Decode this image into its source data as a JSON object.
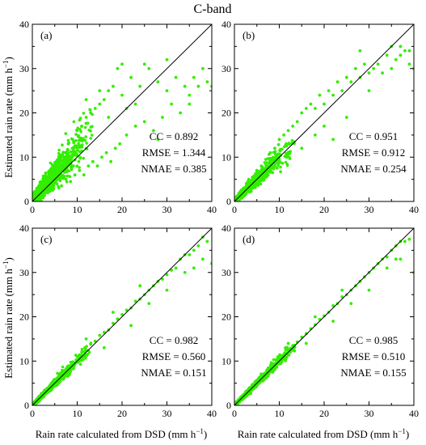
{
  "figure": {
    "title": "C-band",
    "xlabel": "Rain rate calculated  from DSD (mm h",
    "ylabel": "Estimated rain rate (mm h",
    "unit_exponent": "−1",
    "xticks": [
      "0",
      "10",
      "20",
      "30",
      "40"
    ],
    "yticks": [
      "0",
      "10",
      "20",
      "30",
      "40"
    ],
    "point_color": "#33ee00",
    "line_color": "#000000"
  },
  "chart_data": [
    {
      "type": "scatter",
      "panel": "(a)",
      "xlim": [
        0,
        40
      ],
      "ylim": [
        0,
        40
      ],
      "reference_line": "1:1",
      "stats": {
        "cc": "CC = 0.892",
        "rmse": "RMSE = 1.344",
        "nmae": "NMAE = 0.385"
      },
      "spread": 0.5,
      "points": [
        [
          0.5,
          0.8
        ],
        [
          1,
          2.2
        ],
        [
          1.5,
          0.6
        ],
        [
          2,
          3.5
        ],
        [
          2.5,
          1.2
        ],
        [
          3,
          5.5
        ],
        [
          3.5,
          2
        ],
        [
          4,
          6.5
        ],
        [
          4.5,
          3
        ],
        [
          5,
          8
        ],
        [
          5.5,
          4
        ],
        [
          6,
          9.5
        ],
        [
          6.5,
          3.5
        ],
        [
          7,
          11
        ],
        [
          7.5,
          5
        ],
        [
          8,
          13
        ],
        [
          8.5,
          4.5
        ],
        [
          9,
          14
        ],
        [
          9.5,
          6
        ],
        [
          10,
          16
        ],
        [
          10.5,
          7
        ],
        [
          11,
          17
        ],
        [
          11.5,
          6
        ],
        [
          12,
          19
        ],
        [
          12.5,
          8
        ],
        [
          13,
          20
        ],
        [
          13.5,
          9
        ],
        [
          14,
          21
        ],
        [
          14.5,
          8
        ],
        [
          15,
          22
        ],
        [
          15.5,
          10
        ],
        [
          16,
          23
        ],
        [
          16.5,
          11
        ],
        [
          17,
          25
        ],
        [
          17.5,
          9
        ],
        [
          18,
          26
        ],
        [
          18.5,
          12
        ],
        [
          19,
          30
        ],
        [
          19.5,
          13
        ],
        [
          20,
          24
        ],
        [
          21,
          15
        ],
        [
          22,
          28
        ],
        [
          23,
          17
        ],
        [
          24,
          26
        ],
        [
          25,
          18
        ],
        [
          26,
          30
        ],
        [
          27,
          16
        ],
        [
          28,
          27
        ],
        [
          29,
          19
        ],
        [
          30,
          25
        ],
        [
          31,
          22
        ],
        [
          32,
          28
        ],
        [
          33,
          20
        ],
        [
          34,
          26
        ],
        [
          35,
          24
        ],
        [
          36,
          28
        ],
        [
          37,
          26
        ],
        [
          38,
          30
        ],
        [
          39,
          27
        ],
        [
          40,
          26
        ],
        [
          20,
          31
        ],
        [
          23,
          22
        ],
        [
          25,
          31
        ],
        [
          30,
          32
        ],
        [
          12,
          23
        ],
        [
          15,
          25
        ],
        [
          35,
          22
        ],
        [
          28,
          14
        ],
        [
          17,
          19
        ],
        [
          21,
          21
        ]
      ]
    },
    {
      "type": "scatter",
      "panel": "(b)",
      "xlim": [
        0,
        40
      ],
      "ylim": [
        0,
        40
      ],
      "reference_line": "1:1",
      "stats": {
        "cc": "CC = 0.951",
        "rmse": "RMSE = 0.912",
        "nmae": "NMAE = 0.254"
      },
      "spread": 0.35,
      "points": [
        [
          0.5,
          0.8
        ],
        [
          1,
          1.8
        ],
        [
          1.5,
          0.9
        ],
        [
          2,
          2.8
        ],
        [
          2.5,
          1.6
        ],
        [
          3,
          4.5
        ],
        [
          3.5,
          2.5
        ],
        [
          4,
          5.5
        ],
        [
          4.5,
          3.3
        ],
        [
          5,
          7
        ],
        [
          5.5,
          4.2
        ],
        [
          6,
          8
        ],
        [
          6.5,
          4.8
        ],
        [
          7,
          9.5
        ],
        [
          7.5,
          6
        ],
        [
          8,
          11
        ],
        [
          8.5,
          6.5
        ],
        [
          9,
          12
        ],
        [
          9.5,
          7.5
        ],
        [
          10,
          14
        ],
        [
          11,
          15
        ],
        [
          12,
          16
        ],
        [
          13,
          17
        ],
        [
          14,
          18
        ],
        [
          15,
          20
        ],
        [
          16,
          21
        ],
        [
          17,
          22
        ],
        [
          18,
          21
        ],
        [
          19,
          24
        ],
        [
          20,
          22
        ],
        [
          21,
          25
        ],
        [
          22,
          24
        ],
        [
          23,
          27
        ],
        [
          24,
          25
        ],
        [
          25,
          28
        ],
        [
          26,
          27
        ],
        [
          27,
          30
        ],
        [
          28,
          28
        ],
        [
          29,
          31
        ],
        [
          30,
          29
        ],
        [
          31,
          30
        ],
        [
          32,
          31
        ],
        [
          33,
          29
        ],
        [
          34,
          33
        ],
        [
          35,
          30
        ],
        [
          36,
          32
        ],
        [
          37,
          35
        ],
        [
          38,
          34
        ],
        [
          39,
          31
        ],
        [
          40,
          30
        ],
        [
          35,
          35
        ],
        [
          37,
          33
        ],
        [
          39,
          34
        ],
        [
          15,
          12
        ],
        [
          20,
          17
        ],
        [
          25,
          19
        ],
        [
          18,
          15
        ],
        [
          30,
          25
        ],
        [
          22,
          14
        ],
        [
          28,
          34
        ]
      ]
    },
    {
      "type": "scatter",
      "panel": "(c)",
      "xlim": [
        0,
        40
      ],
      "ylim": [
        0,
        40
      ],
      "reference_line": "1:1",
      "stats": {
        "cc": "CC = 0.982",
        "rmse": "RMSE = 0.560",
        "nmae": "NMAE = 0.151"
      },
      "spread": 0.2,
      "points": [
        [
          0.5,
          0.6
        ],
        [
          1,
          1.3
        ],
        [
          1.5,
          1.4
        ],
        [
          2,
          2.3
        ],
        [
          2.5,
          2.4
        ],
        [
          3,
          3.5
        ],
        [
          3.5,
          3.2
        ],
        [
          4,
          4.6
        ],
        [
          4.5,
          4.3
        ],
        [
          5,
          5.7
        ],
        [
          5.5,
          5.2
        ],
        [
          6,
          6.8
        ],
        [
          6.5,
          6.1
        ],
        [
          7,
          7.8
        ],
        [
          7.5,
          7.2
        ],
        [
          8,
          8.9
        ],
        [
          8.5,
          8.1
        ],
        [
          9,
          9.8
        ],
        [
          9.5,
          9.3
        ],
        [
          10,
          11
        ],
        [
          11,
          12
        ],
        [
          12,
          12.5
        ],
        [
          13,
          13.8
        ],
        [
          14,
          14.5
        ],
        [
          15,
          15.8
        ],
        [
          16,
          16.5
        ],
        [
          17,
          17
        ],
        [
          18,
          18.5
        ],
        [
          19,
          19.5
        ],
        [
          20,
          20.5
        ],
        [
          21,
          21.5
        ],
        [
          22,
          22
        ],
        [
          23,
          23.5
        ],
        [
          24,
          24
        ],
        [
          25,
          25
        ],
        [
          26,
          26
        ],
        [
          27,
          27
        ],
        [
          28,
          28
        ],
        [
          29,
          28.5
        ],
        [
          30,
          29.5
        ],
        [
          31,
          30.5
        ],
        [
          32,
          31
        ],
        [
          33,
          33
        ],
        [
          34,
          34
        ],
        [
          35,
          34
        ],
        [
          36,
          35
        ],
        [
          37,
          36
        ],
        [
          38,
          38
        ],
        [
          39,
          37
        ],
        [
          40,
          32
        ],
        [
          16,
          13
        ],
        [
          22,
          18
        ],
        [
          26,
          23
        ],
        [
          30,
          26
        ],
        [
          34,
          30
        ],
        [
          12,
          15
        ],
        [
          18,
          21
        ],
        [
          24,
          27
        ],
        [
          38,
          33
        ],
        [
          36,
          31
        ]
      ]
    },
    {
      "type": "scatter",
      "panel": "(d)",
      "xlim": [
        0,
        40
      ],
      "ylim": [
        0,
        40
      ],
      "reference_line": "1:1",
      "stats": {
        "cc": "CC = 0.985",
        "rmse": "RMSE = 0.510",
        "nmae": "NMAE = 0.155"
      },
      "spread": 0.18,
      "points": [
        [
          0.5,
          0.5
        ],
        [
          1,
          1.1
        ],
        [
          1.5,
          1.2
        ],
        [
          2,
          2.2
        ],
        [
          2.5,
          2.4
        ],
        [
          3,
          3.2
        ],
        [
          3.5,
          3.4
        ],
        [
          4,
          4.3
        ],
        [
          4.5,
          4.5
        ],
        [
          5,
          5.4
        ],
        [
          5.5,
          5.5
        ],
        [
          6,
          6.3
        ],
        [
          6.5,
          6.5
        ],
        [
          7,
          7.4
        ],
        [
          7.5,
          7.5
        ],
        [
          8,
          8.5
        ],
        [
          8.5,
          8.5
        ],
        [
          9,
          9.4
        ],
        [
          9.5,
          9.6
        ],
        [
          10,
          10.5
        ],
        [
          11,
          11.5
        ],
        [
          12,
          12.4
        ],
        [
          13,
          13.5
        ],
        [
          14,
          14.3
        ],
        [
          15,
          15.4
        ],
        [
          16,
          16.2
        ],
        [
          17,
          17.3
        ],
        [
          18,
          18.2
        ],
        [
          19,
          19.4
        ],
        [
          20,
          20.2
        ],
        [
          21,
          21
        ],
        [
          22,
          22.5
        ],
        [
          23,
          23
        ],
        [
          24,
          24.5
        ],
        [
          25,
          25
        ],
        [
          26,
          26
        ],
        [
          27,
          27
        ],
        [
          28,
          28
        ],
        [
          29,
          29
        ],
        [
          30,
          30
        ],
        [
          31,
          31
        ],
        [
          32,
          32
        ],
        [
          33,
          33
        ],
        [
          34,
          33.5
        ],
        [
          35,
          35
        ],
        [
          36,
          36
        ],
        [
          37,
          37
        ],
        [
          38,
          37
        ],
        [
          39,
          37.5
        ],
        [
          40,
          30
        ],
        [
          16,
          14
        ],
        [
          22,
          19
        ],
        [
          26,
          23
        ],
        [
          30,
          26
        ],
        [
          34,
          31
        ],
        [
          12,
          14
        ],
        [
          18,
          20
        ],
        [
          24,
          26
        ],
        [
          37,
          33
        ],
        [
          36,
          33
        ]
      ]
    }
  ]
}
